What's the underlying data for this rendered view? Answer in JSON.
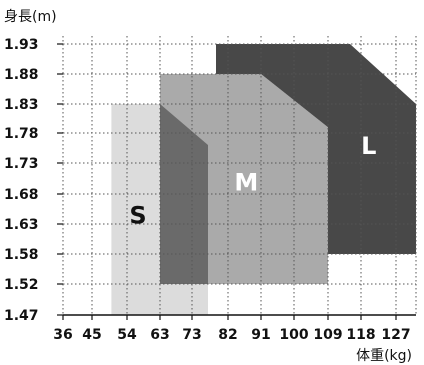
{
  "chart_data": {
    "type": "area",
    "title": "",
    "ylabel": "身長(m)",
    "xlabel": "体重(kg)",
    "x_ticks": [
      36,
      45,
      54,
      63,
      73,
      82,
      91,
      100,
      109,
      118,
      127
    ],
    "y_ticks": [
      1.47,
      1.52,
      1.58,
      1.63,
      1.68,
      1.73,
      1.78,
      1.83,
      1.88,
      1.93
    ],
    "x_tick_labels": [
      "36",
      "45",
      "54",
      "63",
      "73",
      "82",
      "91",
      "100",
      "109",
      "118",
      "127"
    ],
    "y_tick_labels": [
      "1.47",
      "1.52",
      "1.58",
      "1.63",
      "1.68",
      "1.73",
      "1.78",
      "1.83",
      "1.88",
      "1.93"
    ],
    "grid": true,
    "series": [
      {
        "name": "S",
        "color": "#dcdcdc",
        "polygon": [
          [
            50,
            1.47
          ],
          [
            77,
            1.47
          ],
          [
            77,
            1.52
          ],
          [
            63,
            1.52
          ],
          [
            63,
            1.83
          ],
          [
            50,
            1.83
          ]
        ]
      },
      {
        "name": "M",
        "color": "#aaaaaa",
        "polygon": [
          [
            63,
            1.52
          ],
          [
            109,
            1.52
          ],
          [
            109,
            1.79
          ],
          [
            91,
            1.88
          ],
          [
            63,
            1.88
          ]
        ]
      },
      {
        "name": "",
        "color": "#6a6a6a",
        "polygon": [
          [
            63,
            1.52
          ],
          [
            77,
            1.52
          ],
          [
            77,
            1.76
          ],
          [
            63,
            1.83
          ]
        ]
      },
      {
        "name": "L",
        "color": "#484848",
        "polygon": [
          [
            79,
            1.88
          ],
          [
            91,
            1.88
          ],
          [
            109,
            1.79
          ],
          [
            109,
            1.58
          ],
          [
            132,
            1.58
          ],
          [
            132,
            1.83
          ],
          [
            115,
            1.93
          ],
          [
            79,
            1.93
          ]
        ]
      }
    ],
    "region_labels": [
      {
        "text": "S",
        "x": 57,
        "y": 1.646,
        "color": "#111111"
      },
      {
        "text": "M",
        "x": 87,
        "y": 1.7,
        "color": "#ffffff"
      },
      {
        "text": "L",
        "x": 120,
        "y": 1.76,
        "color": "#ffffff"
      }
    ]
  },
  "colors": {
    "grid": "#555555",
    "axis": "#111111",
    "text": "#111111"
  }
}
